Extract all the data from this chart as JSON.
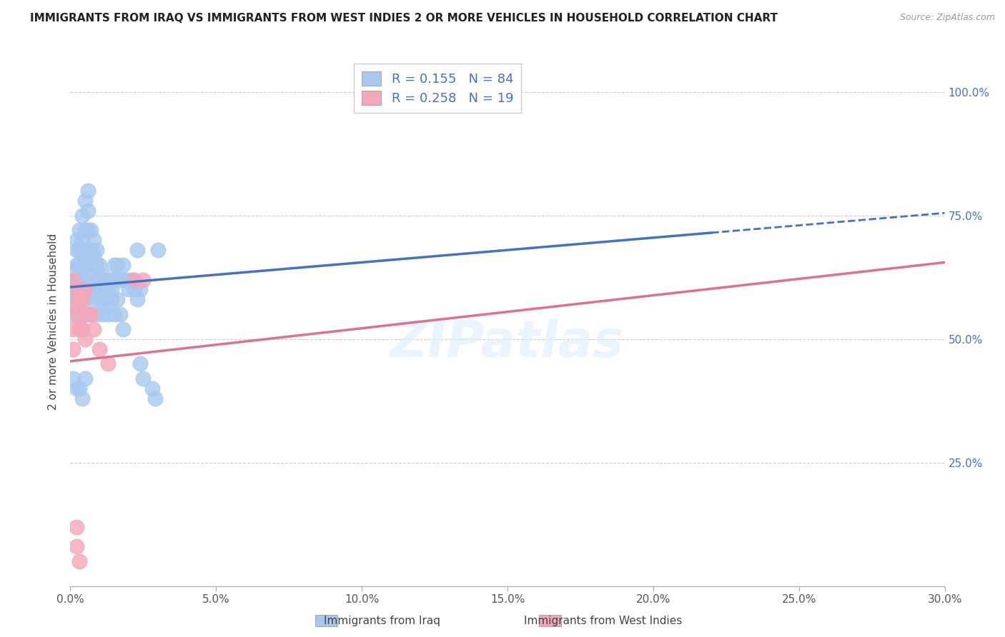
{
  "title": "IMMIGRANTS FROM IRAQ VS IMMIGRANTS FROM WEST INDIES 2 OR MORE VEHICLES IN HOUSEHOLD CORRELATION CHART",
  "source": "Source: ZipAtlas.com",
  "ylabel": "2 or more Vehicles in Household",
  "xlim": [
    0.0,
    0.3
  ],
  "ylim": [
    0.0,
    1.07
  ],
  "xtick_labels": [
    "0.0%",
    "5.0%",
    "10.0%",
    "15.0%",
    "20.0%",
    "25.0%",
    "30.0%"
  ],
  "xtick_values": [
    0.0,
    0.05,
    0.1,
    0.15,
    0.2,
    0.25,
    0.3
  ],
  "ytick_labels": [
    "25.0%",
    "50.0%",
    "75.0%",
    "100.0%"
  ],
  "ytick_values": [
    0.25,
    0.5,
    0.75,
    1.0
  ],
  "legend1_label": "Immigrants from Iraq",
  "legend2_label": "Immigrants from West Indies",
  "R1": 0.155,
  "N1": 84,
  "R2": 0.258,
  "N2": 19,
  "blue_color": "#A8C8F0",
  "pink_color": "#F4A7B9",
  "blue_line_color": "#4472C4",
  "pink_line_color": "#E07090",
  "watermark": "ZIPatlas",
  "background_color": "#FFFFFF",
  "blue_line_x0": 0.0,
  "blue_line_y0": 0.605,
  "blue_line_x1": 0.3,
  "blue_line_y1": 0.755,
  "blue_line_solid_end": 0.22,
  "pink_line_x0": 0.0,
  "pink_line_y0": 0.455,
  "pink_line_x1": 0.3,
  "pink_line_y1": 0.655,
  "iraq_x": [
    0.001,
    0.001,
    0.001,
    0.001,
    0.002,
    0.002,
    0.002,
    0.002,
    0.003,
    0.003,
    0.003,
    0.003,
    0.004,
    0.004,
    0.004,
    0.004,
    0.005,
    0.005,
    0.005,
    0.005,
    0.005,
    0.006,
    0.006,
    0.006,
    0.006,
    0.006,
    0.007,
    0.007,
    0.007,
    0.007,
    0.008,
    0.008,
    0.008,
    0.008,
    0.009,
    0.009,
    0.009,
    0.01,
    0.01,
    0.01,
    0.011,
    0.011,
    0.012,
    0.012,
    0.013,
    0.013,
    0.014,
    0.014,
    0.015,
    0.015,
    0.016,
    0.016,
    0.017,
    0.018,
    0.019,
    0.02,
    0.021,
    0.022,
    0.023,
    0.024,
    0.001,
    0.002,
    0.003,
    0.004,
    0.005,
    0.006,
    0.007,
    0.008,
    0.009,
    0.01,
    0.011,
    0.012,
    0.013,
    0.014,
    0.015,
    0.016,
    0.017,
    0.018,
    0.023,
    0.024,
    0.025,
    0.028,
    0.029,
    0.03
  ],
  "iraq_y": [
    0.62,
    0.64,
    0.6,
    0.58,
    0.65,
    0.68,
    0.7,
    0.62,
    0.72,
    0.68,
    0.65,
    0.6,
    0.75,
    0.7,
    0.65,
    0.62,
    0.78,
    0.72,
    0.68,
    0.65,
    0.62,
    0.8,
    0.76,
    0.72,
    0.68,
    0.65,
    0.72,
    0.68,
    0.65,
    0.6,
    0.7,
    0.67,
    0.63,
    0.6,
    0.68,
    0.65,
    0.62,
    0.65,
    0.62,
    0.6,
    0.63,
    0.6,
    0.62,
    0.6,
    0.6,
    0.58,
    0.62,
    0.6,
    0.65,
    0.62,
    0.65,
    0.62,
    0.62,
    0.65,
    0.62,
    0.6,
    0.62,
    0.6,
    0.58,
    0.6,
    0.55,
    0.58,
    0.55,
    0.52,
    0.58,
    0.55,
    0.6,
    0.58,
    0.55,
    0.58,
    0.55,
    0.58,
    0.55,
    0.58,
    0.55,
    0.58,
    0.55,
    0.52,
    0.68,
    0.45,
    0.42,
    0.4,
    0.38,
    0.68
  ],
  "wi_x": [
    0.001,
    0.001,
    0.001,
    0.002,
    0.002,
    0.003,
    0.003,
    0.004,
    0.004,
    0.005,
    0.005,
    0.005,
    0.006,
    0.007,
    0.008,
    0.01,
    0.013,
    0.022,
    0.025
  ],
  "wi_y": [
    0.62,
    0.57,
    0.52,
    0.6,
    0.55,
    0.58,
    0.52,
    0.58,
    0.52,
    0.6,
    0.55,
    0.5,
    0.55,
    0.55,
    0.52,
    0.48,
    0.45,
    0.62,
    0.62
  ]
}
